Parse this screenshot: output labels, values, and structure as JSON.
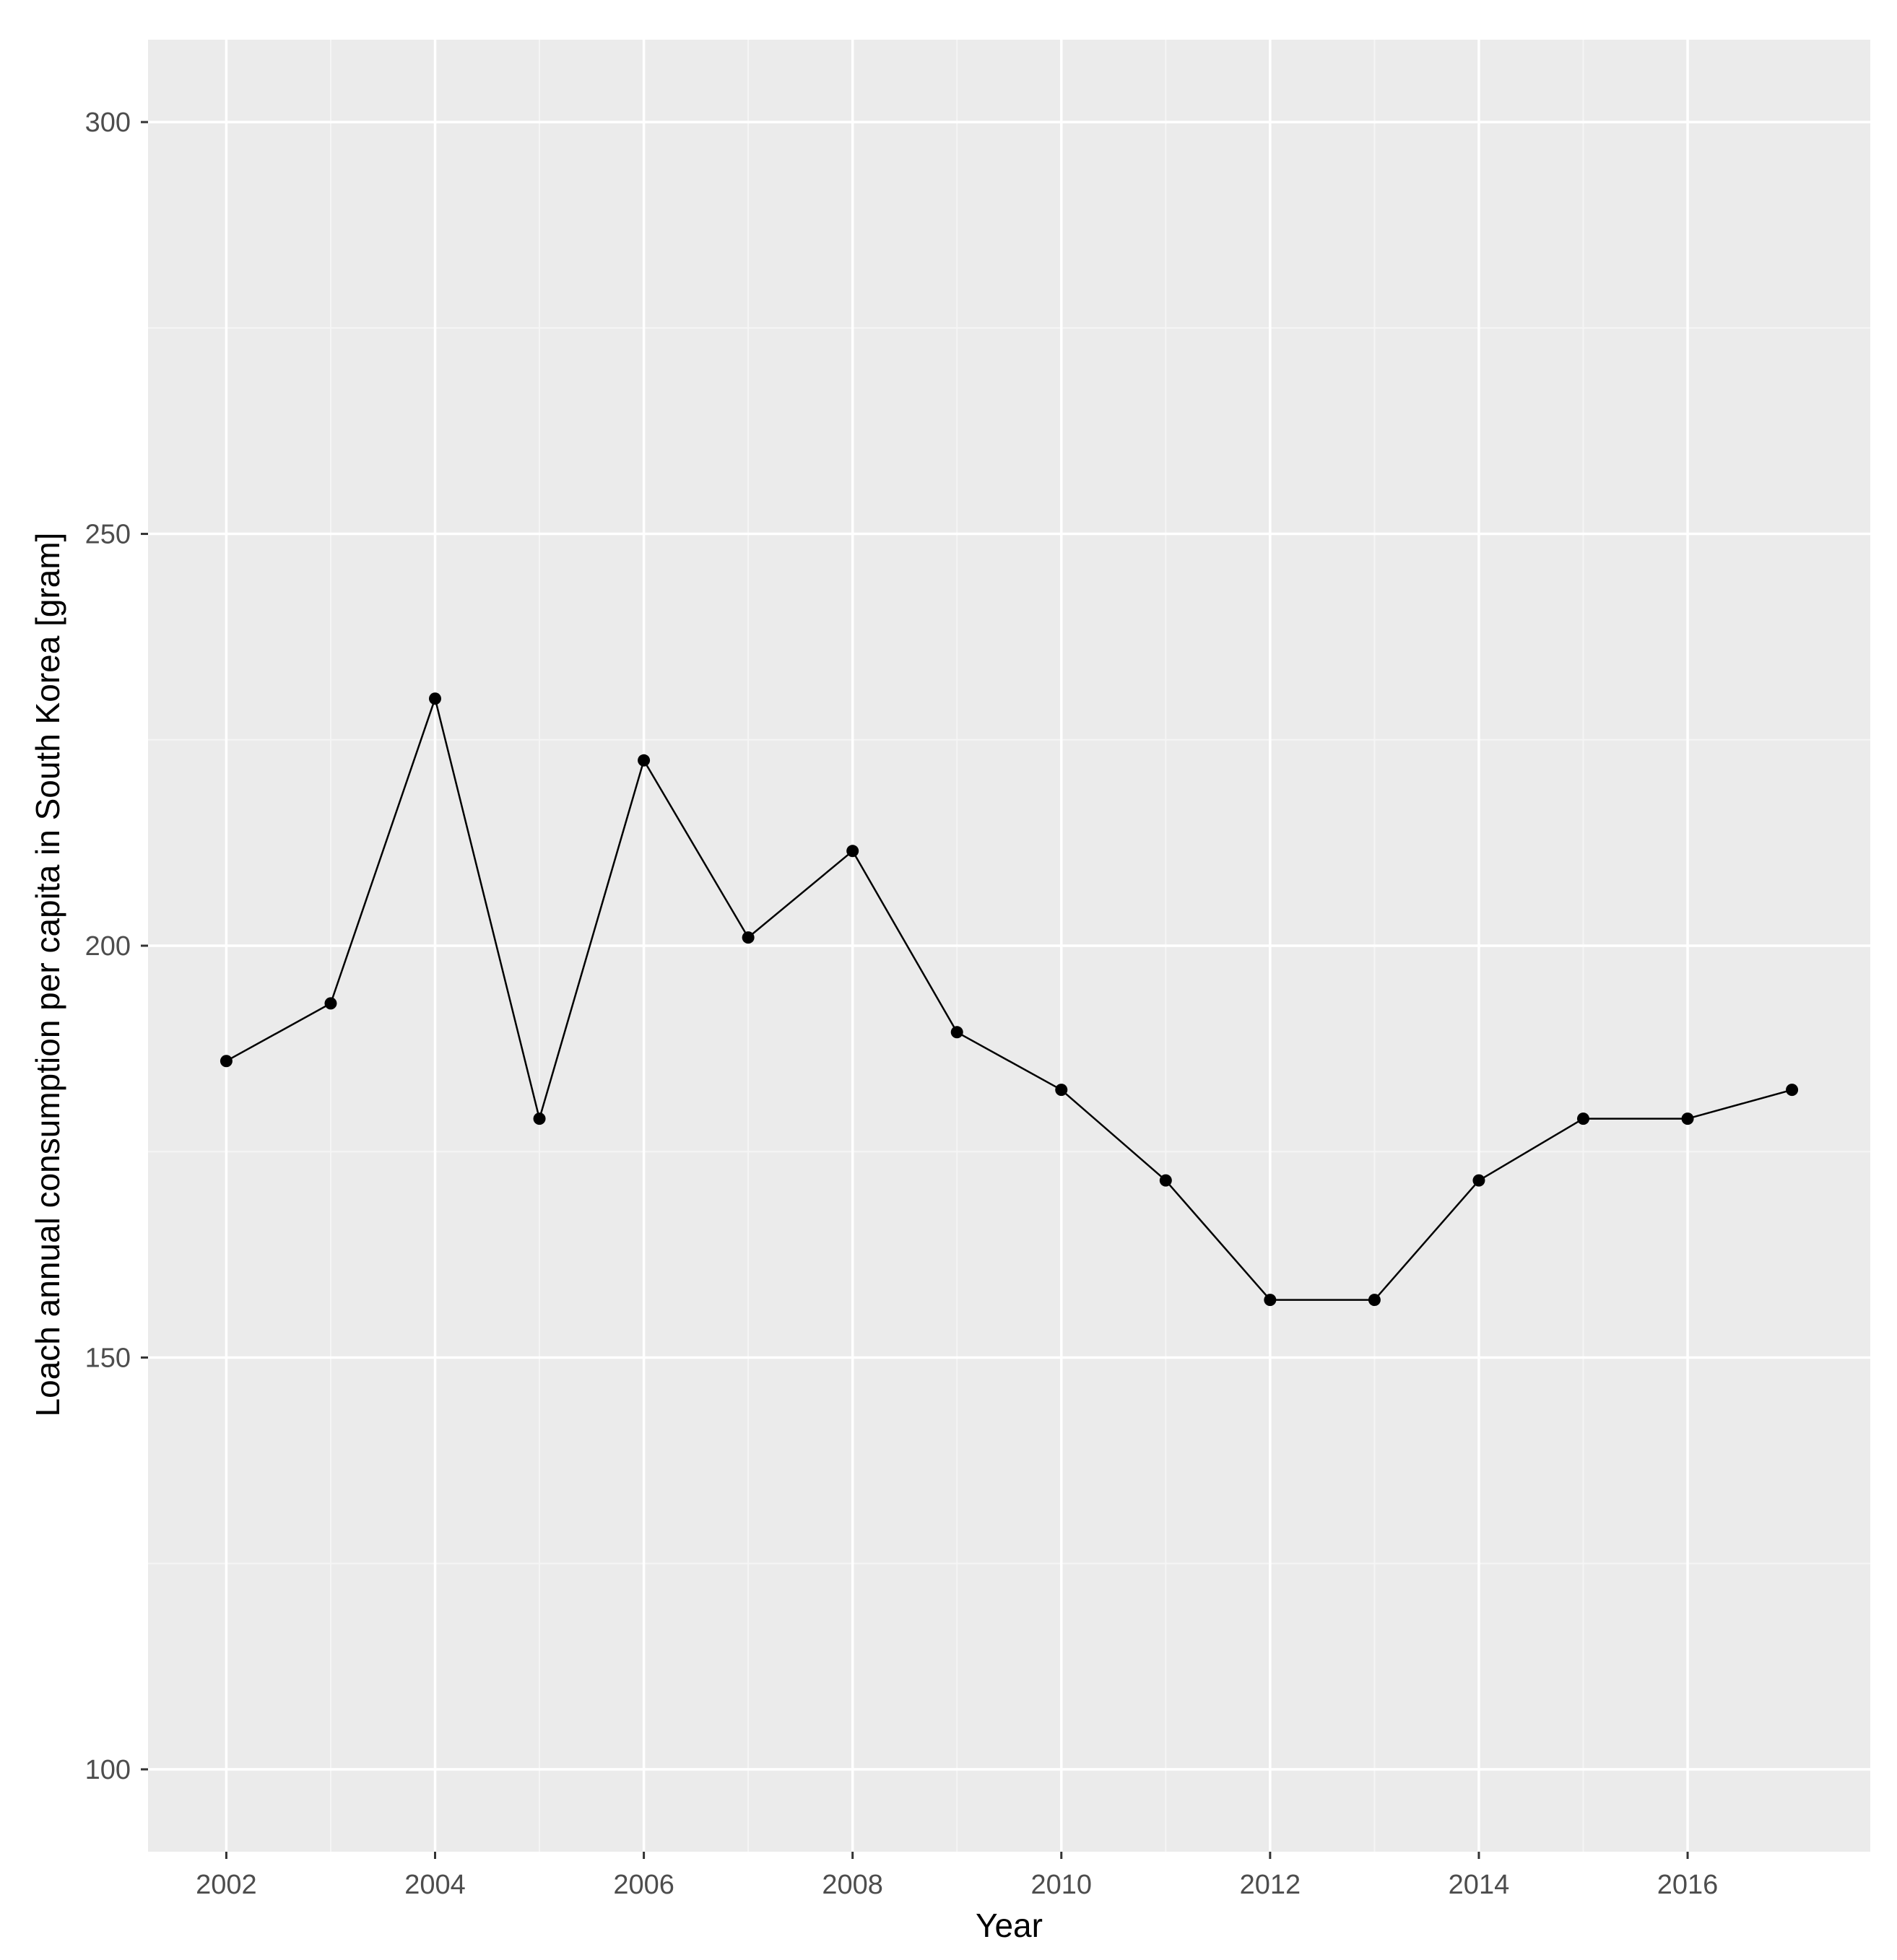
{
  "colors": {
    "panel_background": "#ebebeb",
    "grid_major": "#ffffff",
    "grid_minor": "#f5f5f5",
    "line": "#000000",
    "point": "#000000",
    "tick_text": "#4d4d4d",
    "axis_tick": "#333333"
  },
  "chart_data": {
    "type": "line",
    "title": "",
    "xlabel": "Year",
    "ylabel": "Loach annual consumption per capita in South Korea [gram]",
    "xlim": [
      2001.25,
      2017.75
    ],
    "ylim": [
      90,
      310
    ],
    "x_ticks": [
      2002,
      2004,
      2006,
      2008,
      2010,
      2012,
      2014,
      2016
    ],
    "x_tick_labels": [
      "2002",
      "2004",
      "2006",
      "2008",
      "2010",
      "2012",
      "2014",
      "2016"
    ],
    "y_ticks": [
      100,
      150,
      200,
      250,
      300
    ],
    "y_tick_labels": [
      "100",
      "150",
      "200",
      "250",
      "300"
    ],
    "grid": true,
    "legend": "none",
    "series": [
      {
        "x": [
          2002,
          2003,
          2004,
          2005,
          2006,
          2007,
          2008,
          2009,
          2010,
          2011,
          2012,
          2013,
          2014,
          2015,
          2016,
          2017
        ],
        "y": [
          186,
          193,
          230,
          179,
          222.5,
          201,
          211.5,
          189.5,
          182.5,
          171.5,
          157,
          157,
          171.5,
          179,
          179,
          182.5
        ]
      }
    ]
  }
}
